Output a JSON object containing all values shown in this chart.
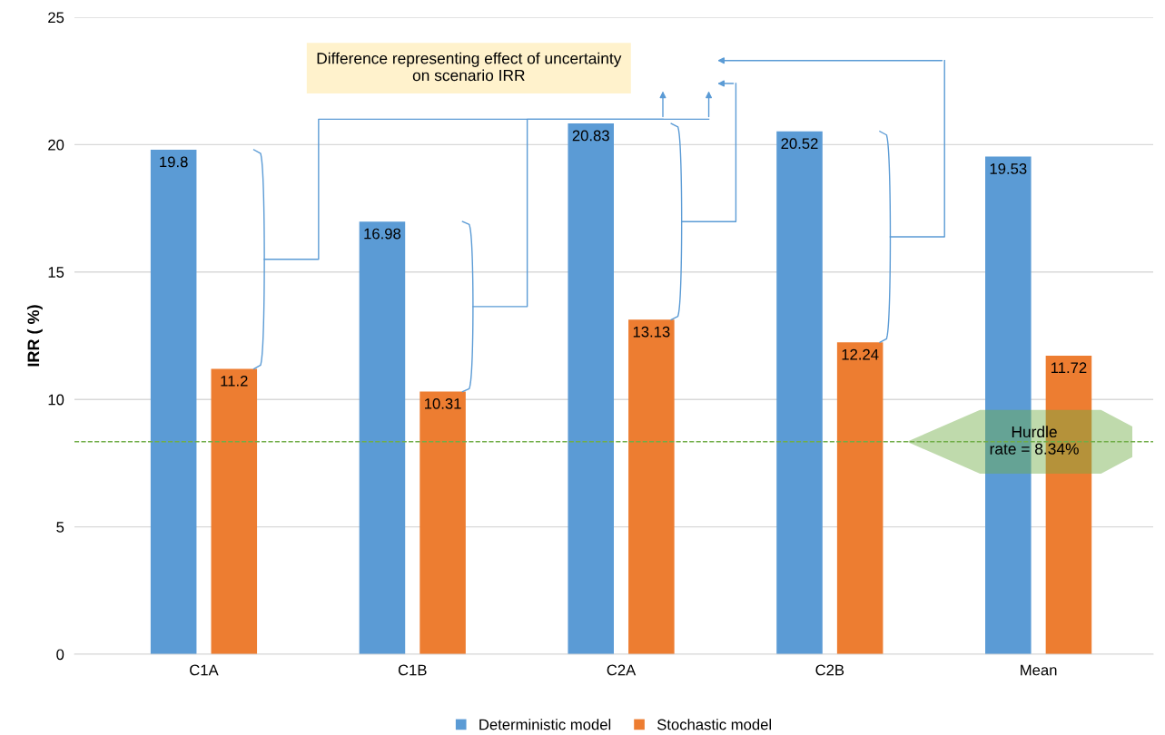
{
  "chart_data": {
    "type": "bar",
    "ylabel": "IRR ( %)",
    "categories": [
      "C1A",
      "C1B",
      "C2A",
      "C2B",
      "Mean"
    ],
    "series": [
      {
        "name": "Deterministic model",
        "color": "#5b9bd5",
        "values": [
          19.8,
          16.98,
          20.83,
          20.52,
          19.53
        ]
      },
      {
        "name": "Stochastic model",
        "color": "#ed7d31",
        "values": [
          11.2,
          10.31,
          13.13,
          12.24,
          11.72
        ]
      }
    ],
    "ylim": [
      0,
      25
    ],
    "yticks": [
      0,
      5,
      10,
      15,
      20,
      25
    ],
    "grid": "y",
    "legend": "bottom",
    "data_labels": true,
    "ref_lines": [
      {
        "axis": "y",
        "value": 8.34,
        "label": "Hurdle\nrate = 8.34%",
        "color": "#70ad47",
        "line_style": "dashed"
      }
    ],
    "annotations": [
      "Difference representing effect of uncertainty\non scenario IRR"
    ]
  }
}
